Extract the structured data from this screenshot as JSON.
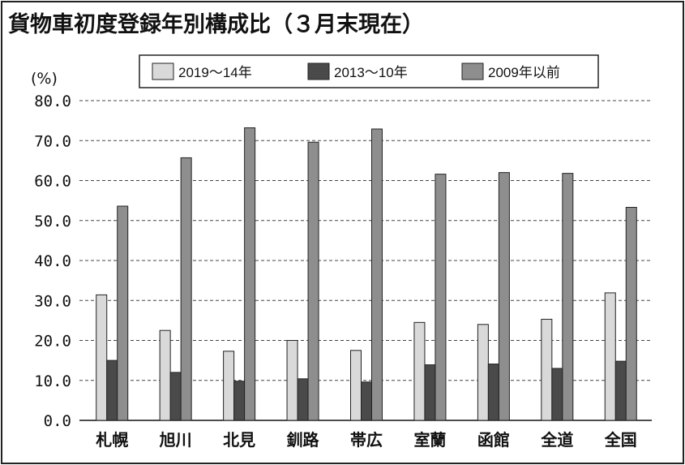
{
  "title": "貨物車初度登録年別構成比（３月末現在）",
  "chart_data": {
    "type": "bar",
    "title": "貨物車初度登録年別構成比（３月末現在）",
    "ylabel": "(%)",
    "ylim": [
      0,
      80
    ],
    "yticks": [
      "0.0",
      "10.0",
      "20.0",
      "30.0",
      "40.0",
      "50.0",
      "60.0",
      "70.0",
      "80.0"
    ],
    "grid": true,
    "legend_position": "top",
    "categories": [
      "札幌",
      "旭川",
      "北見",
      "釧路",
      "帯広",
      "室蘭",
      "函館",
      "全道",
      "全国"
    ],
    "series": [
      {
        "name": "2019～14年",
        "color": "#d9d9d9",
        "values": [
          31.4,
          22.5,
          17.3,
          20.0,
          17.5,
          24.5,
          24.0,
          25.3,
          31.9
        ]
      },
      {
        "name": "2013～10年",
        "color": "#4a4a4a",
        "values": [
          15.0,
          12.0,
          9.8,
          10.4,
          9.6,
          13.9,
          14.1,
          13.0,
          14.8
        ]
      },
      {
        "name": "2009年以前",
        "color": "#8e8e8e",
        "values": [
          53.6,
          65.7,
          73.2,
          69.6,
          72.9,
          61.6,
          62.0,
          61.8,
          53.3
        ]
      }
    ]
  }
}
